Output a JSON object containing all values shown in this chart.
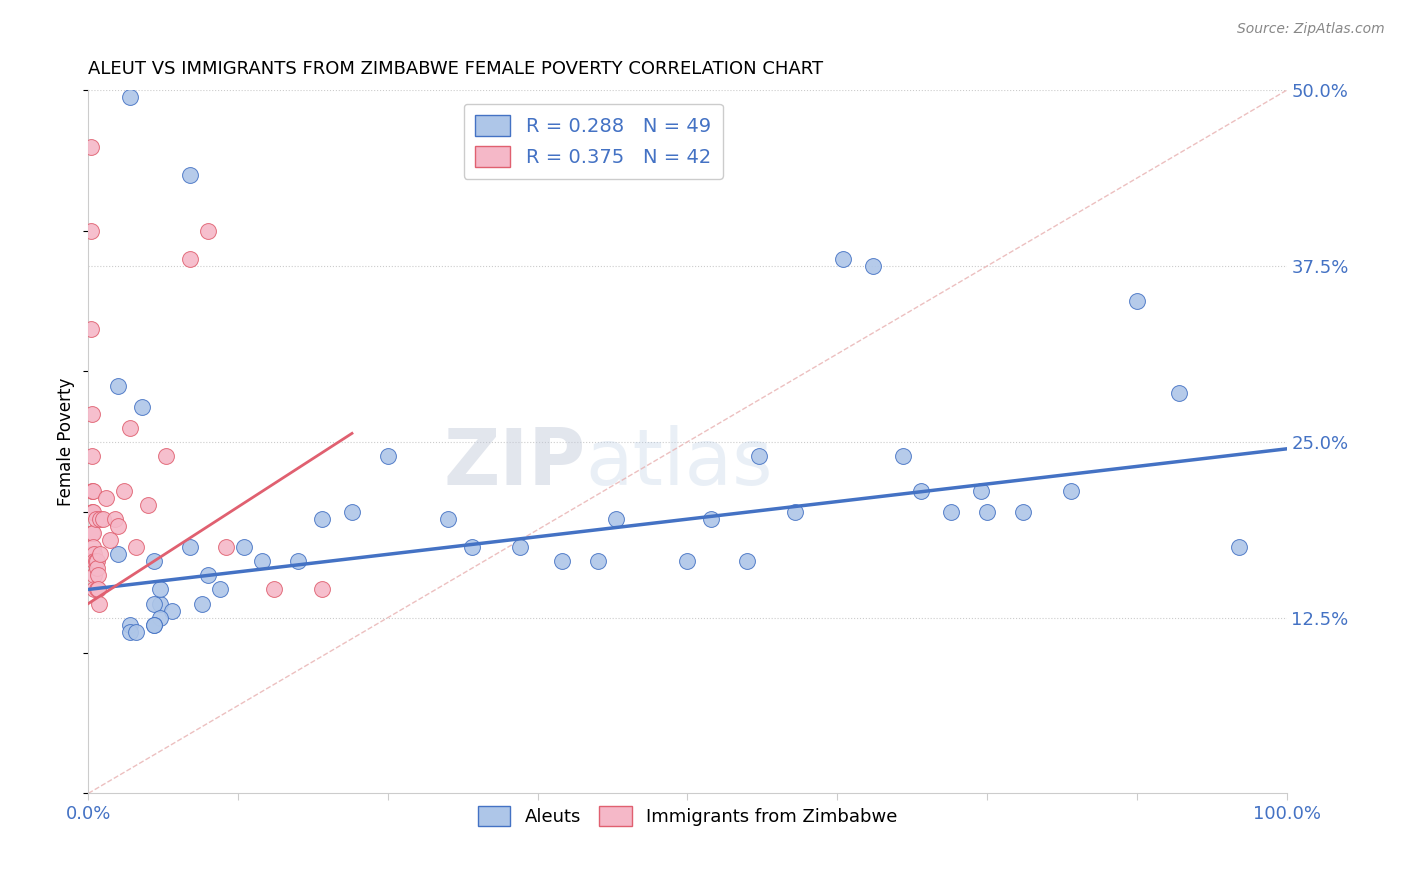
{
  "title": "ALEUT VS IMMIGRANTS FROM ZIMBABWE FEMALE POVERTY CORRELATION CHART",
  "source": "Source: ZipAtlas.com",
  "ylabel": "Female Poverty",
  "xlim": [
    0,
    1.0
  ],
  "ylim": [
    0,
    0.5
  ],
  "ytick_labels": [
    "12.5%",
    "25.0%",
    "37.5%",
    "50.0%"
  ],
  "ytick_values": [
    0.125,
    0.25,
    0.375,
    0.5
  ],
  "blue_color": "#aec6e8",
  "pink_color": "#f5b8c8",
  "blue_line_color": "#4472c4",
  "pink_line_color": "#e06070",
  "diag_line_color": "#e8b0b0",
  "legend_R_blue": "R = 0.288",
  "legend_N_blue": "N = 49",
  "legend_R_pink": "R = 0.375",
  "legend_N_pink": "N = 42",
  "label_blue": "Aleuts",
  "label_pink": "Immigrants from Zimbabwe",
  "watermark_zip": "ZIP",
  "watermark_atlas": "atlas",
  "blue_slope": 0.1,
  "blue_intercept": 0.145,
  "blue_line_x": [
    0.0,
    1.0
  ],
  "pink_slope": 0.55,
  "pink_intercept": 0.135,
  "pink_line_x": [
    0.0,
    0.22
  ],
  "blue_x": [
    0.035,
    0.085,
    0.025,
    0.045,
    0.025,
    0.055,
    0.06,
    0.07,
    0.055,
    0.06,
    0.055,
    0.055,
    0.035,
    0.035,
    0.04,
    0.06,
    0.085,
    0.1,
    0.095,
    0.11,
    0.13,
    0.145,
    0.175,
    0.195,
    0.22,
    0.25,
    0.3,
    0.32,
    0.36,
    0.395,
    0.425,
    0.44,
    0.5,
    0.52,
    0.55,
    0.56,
    0.59,
    0.63,
    0.655,
    0.68,
    0.695,
    0.72,
    0.745,
    0.75,
    0.78,
    0.82,
    0.875,
    0.91,
    0.96
  ],
  "blue_y": [
    0.495,
    0.44,
    0.29,
    0.275,
    0.17,
    0.165,
    0.135,
    0.13,
    0.135,
    0.125,
    0.12,
    0.12,
    0.12,
    0.115,
    0.115,
    0.145,
    0.175,
    0.155,
    0.135,
    0.145,
    0.175,
    0.165,
    0.165,
    0.195,
    0.2,
    0.24,
    0.195,
    0.175,
    0.175,
    0.165,
    0.165,
    0.195,
    0.165,
    0.195,
    0.165,
    0.24,
    0.2,
    0.38,
    0.375,
    0.24,
    0.215,
    0.2,
    0.215,
    0.2,
    0.2,
    0.215,
    0.35,
    0.285,
    0.175
  ],
  "pink_x": [
    0.002,
    0.002,
    0.002,
    0.003,
    0.003,
    0.003,
    0.003,
    0.003,
    0.003,
    0.004,
    0.004,
    0.004,
    0.004,
    0.005,
    0.005,
    0.005,
    0.005,
    0.006,
    0.006,
    0.007,
    0.007,
    0.007,
    0.008,
    0.008,
    0.009,
    0.01,
    0.01,
    0.012,
    0.015,
    0.018,
    0.022,
    0.025,
    0.03,
    0.035,
    0.04,
    0.05,
    0.065,
    0.085,
    0.1,
    0.115,
    0.155,
    0.195
  ],
  "pink_y": [
    0.46,
    0.4,
    0.33,
    0.27,
    0.24,
    0.215,
    0.2,
    0.185,
    0.17,
    0.215,
    0.2,
    0.185,
    0.175,
    0.17,
    0.165,
    0.155,
    0.145,
    0.195,
    0.165,
    0.165,
    0.16,
    0.145,
    0.155,
    0.145,
    0.135,
    0.195,
    0.17,
    0.195,
    0.21,
    0.18,
    0.195,
    0.19,
    0.215,
    0.26,
    0.175,
    0.205,
    0.24,
    0.38,
    0.4,
    0.175,
    0.145,
    0.145
  ]
}
